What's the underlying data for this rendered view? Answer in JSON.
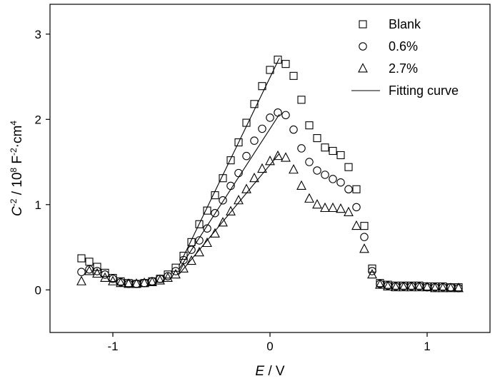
{
  "chart_data": {
    "type": "scatter",
    "title": "",
    "xlabel": {
      "var": "E",
      "unit": " / V"
    },
    "ylabel": {
      "var": "C",
      "sup1": "-2",
      "mid": " / 10",
      "sup2": "8",
      "unit": " F",
      "sup3": "-2",
      "unit2": "·cm",
      "sup4": "4"
    },
    "xlim": [
      -1.4,
      1.4
    ],
    "ylim": [
      -0.5,
      3.35
    ],
    "xticks": [
      -1,
      0,
      1
    ],
    "yticks": [
      0,
      1,
      2,
      3
    ],
    "xtick_labels": [
      "-1",
      "0",
      "1"
    ],
    "ytick_labels": [
      "0",
      "1",
      "2",
      "3"
    ],
    "legend_position": "top-right",
    "series": [
      {
        "name": "Blank",
        "marker": "square",
        "points": [
          [
            -1.2,
            0.37
          ],
          [
            -1.15,
            0.33
          ],
          [
            -1.1,
            0.27
          ],
          [
            -1.05,
            0.2
          ],
          [
            -1.0,
            0.14
          ],
          [
            -0.95,
            0.1
          ],
          [
            -0.9,
            0.08
          ],
          [
            -0.85,
            0.07
          ],
          [
            -0.8,
            0.08
          ],
          [
            -0.75,
            0.1
          ],
          [
            -0.7,
            0.13
          ],
          [
            -0.65,
            0.18
          ],
          [
            -0.6,
            0.26
          ],
          [
            -0.55,
            0.4
          ],
          [
            -0.5,
            0.56
          ],
          [
            -0.45,
            0.77
          ],
          [
            -0.4,
            0.93
          ],
          [
            -0.35,
            1.11
          ],
          [
            -0.3,
            1.31
          ],
          [
            -0.25,
            1.52
          ],
          [
            -0.2,
            1.73
          ],
          [
            -0.15,
            1.96
          ],
          [
            -0.1,
            2.18
          ],
          [
            -0.05,
            2.39
          ],
          [
            0.0,
            2.58
          ],
          [
            0.05,
            2.7
          ],
          [
            0.1,
            2.65
          ],
          [
            0.15,
            2.51
          ],
          [
            0.2,
            2.23
          ],
          [
            0.25,
            1.93
          ],
          [
            0.3,
            1.78
          ],
          [
            0.35,
            1.67
          ],
          [
            0.4,
            1.63
          ],
          [
            0.45,
            1.58
          ],
          [
            0.5,
            1.44
          ],
          [
            0.55,
            1.18
          ],
          [
            0.6,
            0.75
          ],
          [
            0.65,
            0.25
          ],
          [
            0.7,
            0.08
          ],
          [
            0.75,
            0.06
          ],
          [
            0.8,
            0.05
          ],
          [
            0.85,
            0.05
          ],
          [
            0.9,
            0.05
          ],
          [
            0.95,
            0.05
          ],
          [
            1.0,
            0.04
          ],
          [
            1.05,
            0.04
          ],
          [
            1.1,
            0.04
          ],
          [
            1.15,
            0.03
          ],
          [
            1.2,
            0.03
          ]
        ]
      },
      {
        "name": "0.6%",
        "marker": "circle",
        "points": [
          [
            -1.2,
            0.21
          ],
          [
            -1.15,
            0.24
          ],
          [
            -1.1,
            0.22
          ],
          [
            -1.05,
            0.18
          ],
          [
            -1.0,
            0.13
          ],
          [
            -0.95,
            0.09
          ],
          [
            -0.9,
            0.07
          ],
          [
            -0.85,
            0.07
          ],
          [
            -0.8,
            0.08
          ],
          [
            -0.75,
            0.1
          ],
          [
            -0.7,
            0.13
          ],
          [
            -0.65,
            0.16
          ],
          [
            -0.6,
            0.22
          ],
          [
            -0.55,
            0.35
          ],
          [
            -0.5,
            0.47
          ],
          [
            -0.45,
            0.58
          ],
          [
            -0.4,
            0.72
          ],
          [
            -0.35,
            0.9
          ],
          [
            -0.3,
            1.05
          ],
          [
            -0.25,
            1.22
          ],
          [
            -0.2,
            1.37
          ],
          [
            -0.15,
            1.57
          ],
          [
            -0.1,
            1.75
          ],
          [
            -0.05,
            1.89
          ],
          [
            0.0,
            2.02
          ],
          [
            0.05,
            2.08
          ],
          [
            0.1,
            2.05
          ],
          [
            0.15,
            1.88
          ],
          [
            0.2,
            1.66
          ],
          [
            0.25,
            1.5
          ],
          [
            0.3,
            1.4
          ],
          [
            0.35,
            1.35
          ],
          [
            0.4,
            1.3
          ],
          [
            0.45,
            1.26
          ],
          [
            0.5,
            1.18
          ],
          [
            0.55,
            0.97
          ],
          [
            0.6,
            0.62
          ],
          [
            0.65,
            0.22
          ],
          [
            0.7,
            0.07
          ],
          [
            0.75,
            0.05
          ],
          [
            0.8,
            0.04
          ],
          [
            0.85,
            0.04
          ],
          [
            0.9,
            0.04
          ],
          [
            0.95,
            0.04
          ],
          [
            1.0,
            0.03
          ],
          [
            1.05,
            0.03
          ],
          [
            1.1,
            0.03
          ],
          [
            1.15,
            0.03
          ],
          [
            1.2,
            0.02
          ]
        ]
      },
      {
        "name": "2.7%",
        "marker": "triangle",
        "points": [
          [
            -1.2,
            0.1
          ],
          [
            -1.15,
            0.22
          ],
          [
            -1.1,
            0.19
          ],
          [
            -1.05,
            0.14
          ],
          [
            -1.0,
            0.1
          ],
          [
            -0.95,
            0.08
          ],
          [
            -0.9,
            0.07
          ],
          [
            -0.85,
            0.07
          ],
          [
            -0.8,
            0.08
          ],
          [
            -0.75,
            0.09
          ],
          [
            -0.7,
            0.11
          ],
          [
            -0.65,
            0.14
          ],
          [
            -0.6,
            0.18
          ],
          [
            -0.55,
            0.25
          ],
          [
            -0.5,
            0.34
          ],
          [
            -0.45,
            0.44
          ],
          [
            -0.4,
            0.55
          ],
          [
            -0.35,
            0.66
          ],
          [
            -0.3,
            0.79
          ],
          [
            -0.25,
            0.92
          ],
          [
            -0.2,
            1.05
          ],
          [
            -0.15,
            1.18
          ],
          [
            -0.1,
            1.31
          ],
          [
            -0.05,
            1.42
          ],
          [
            0.0,
            1.51
          ],
          [
            0.05,
            1.57
          ],
          [
            0.1,
            1.55
          ],
          [
            0.15,
            1.41
          ],
          [
            0.2,
            1.22
          ],
          [
            0.25,
            1.07
          ],
          [
            0.3,
            1.0
          ],
          [
            0.35,
            0.96
          ],
          [
            0.4,
            0.96
          ],
          [
            0.45,
            0.95
          ],
          [
            0.5,
            0.91
          ],
          [
            0.55,
            0.75
          ],
          [
            0.6,
            0.48
          ],
          [
            0.65,
            0.18
          ],
          [
            0.7,
            0.06
          ],
          [
            0.75,
            0.04
          ],
          [
            0.8,
            0.03
          ],
          [
            0.85,
            0.03
          ],
          [
            0.9,
            0.03
          ],
          [
            0.95,
            0.03
          ],
          [
            1.0,
            0.03
          ],
          [
            1.05,
            0.02
          ],
          [
            1.1,
            0.02
          ],
          [
            1.15,
            0.02
          ],
          [
            1.2,
            0.02
          ]
        ]
      }
    ],
    "fitting_curve": {
      "name": "Fitting curve",
      "lines": [
        {
          "x": [
            -0.58,
            0.06
          ],
          "y": [
            0.28,
            2.72
          ]
        },
        {
          "x": [
            -0.58,
            0.06
          ],
          "y": [
            0.24,
            2.06
          ]
        },
        {
          "x": [
            -0.58,
            0.06
          ],
          "y": [
            0.18,
            1.6
          ]
        }
      ]
    }
  }
}
